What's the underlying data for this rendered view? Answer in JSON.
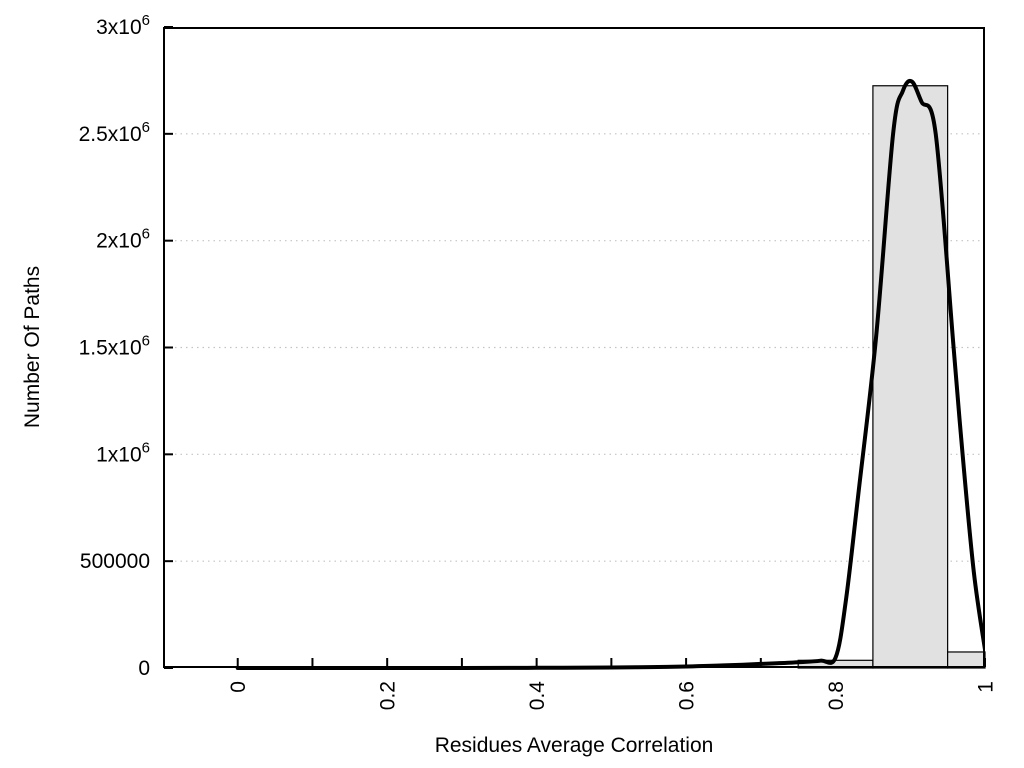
{
  "figure": {
    "background": "#ffffff",
    "axis_color": "#000000",
    "grid_color": "#c4c4c4"
  },
  "chart_data": {
    "type": "bar",
    "subtype": "histogram-with-smoothed-curve",
    "title": "",
    "xlabel": "Residues Average Correlation",
    "ylabel": "Number Of Paths",
    "xlim": [
      -0.1,
      1.0
    ],
    "ylim": [
      0,
      3000000
    ],
    "grid": "horizontal-dotted",
    "legend": "none",
    "bar_fill": "#e1e1e1",
    "bar_stroke": "#000000",
    "bars": [
      {
        "x0": 0.75,
        "x1": 0.85,
        "value": 36000
      },
      {
        "x0": 0.85,
        "x1": 0.95,
        "value": 2725000
      },
      {
        "x0": 0.95,
        "x1": 1.0,
        "value": 75000
      }
    ],
    "curve": {
      "name": "smoothed-frequency-curve",
      "color": "#000000",
      "width": 4,
      "points": [
        [
          0.0,
          0
        ],
        [
          0.1,
          0
        ],
        [
          0.2,
          0
        ],
        [
          0.3,
          0
        ],
        [
          0.4,
          1000
        ],
        [
          0.5,
          2500
        ],
        [
          0.55,
          4000
        ],
        [
          0.6,
          7000
        ],
        [
          0.65,
          12000
        ],
        [
          0.7,
          19000
        ],
        [
          0.75,
          27000
        ],
        [
          0.78,
          34000
        ],
        [
          0.8,
          48000
        ],
        [
          0.814,
          320000
        ],
        [
          0.83,
          800000
        ],
        [
          0.854,
          1540000
        ],
        [
          0.877,
          2500000
        ],
        [
          0.89,
          2700000
        ],
        [
          0.902,
          2745000
        ],
        [
          0.915,
          2650000
        ],
        [
          0.934,
          2500000
        ],
        [
          0.958,
          1500000
        ],
        [
          0.97,
          1000000
        ],
        [
          0.985,
          450000
        ],
        [
          1.0,
          85000
        ]
      ]
    },
    "x_ticks": {
      "minor_start": 0,
      "minor_end": 1,
      "minor_step": 0.1,
      "labels": [
        {
          "v": 0,
          "t": "0"
        },
        {
          "v": 0.2,
          "t": "0.2"
        },
        {
          "v": 0.4,
          "t": "0.4"
        },
        {
          "v": 0.6,
          "t": "0.6"
        },
        {
          "v": 0.8,
          "t": "0.8"
        },
        {
          "v": 1,
          "t": "1"
        }
      ]
    },
    "y_ticks": [
      {
        "v": 0,
        "t": "0",
        "sup": ""
      },
      {
        "v": 500000,
        "t": "500000",
        "sup": ""
      },
      {
        "v": 1000000,
        "t": "1x10",
        "sup": "6"
      },
      {
        "v": 1500000,
        "t": "1.5x10",
        "sup": "6"
      },
      {
        "v": 2000000,
        "t": "2x10",
        "sup": "6"
      },
      {
        "v": 2500000,
        "t": "2.5x10",
        "sup": "6"
      },
      {
        "v": 3000000,
        "t": "3x10",
        "sup": "6"
      }
    ]
  }
}
